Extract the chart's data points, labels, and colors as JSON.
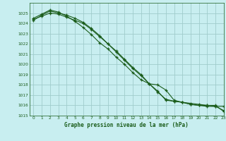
{
  "title": "Graphe pression niveau de la mer (hPa)",
  "bg_color": "#c8eef0",
  "grid_color": "#a0cccc",
  "line_color": "#1a5c1a",
  "xlim": [
    -0.5,
    23
  ],
  "ylim": [
    1015,
    1026
  ],
  "yticks": [
    1015,
    1016,
    1017,
    1018,
    1019,
    1020,
    1021,
    1022,
    1023,
    1024,
    1025
  ],
  "xticks": [
    0,
    1,
    2,
    3,
    4,
    5,
    6,
    7,
    8,
    9,
    10,
    11,
    12,
    13,
    14,
    15,
    16,
    17,
    18,
    19,
    20,
    21,
    22,
    23
  ],
  "line1_x": [
    0,
    1,
    2,
    3,
    4,
    5,
    6,
    7,
    8,
    9,
    10,
    11,
    12,
    13,
    14,
    15,
    16,
    17,
    18,
    19,
    20,
    21,
    22,
    23
  ],
  "line1_y": [
    1024.3,
    1024.8,
    1025.2,
    1025.0,
    1024.8,
    1024.5,
    1024.1,
    1023.5,
    1022.8,
    1022.0,
    1021.2,
    1020.4,
    1019.6,
    1018.9,
    1018.1,
    1018.0,
    1017.5,
    1016.5,
    1016.3,
    1016.1,
    1016.0,
    1015.9,
    1015.9,
    1015.5
  ],
  "line2_x": [
    0,
    1,
    2,
    3,
    4,
    5,
    6,
    7,
    8,
    9,
    10,
    11,
    12,
    13,
    14,
    15,
    16,
    17,
    18,
    19,
    20,
    21,
    22,
    23
  ],
  "line2_y": [
    1024.5,
    1024.9,
    1025.3,
    1025.1,
    1024.7,
    1024.2,
    1023.6,
    1022.9,
    1022.1,
    1021.5,
    1020.7,
    1020.0,
    1019.2,
    1018.5,
    1018.1,
    1017.4,
    1016.5,
    1016.4,
    1016.3,
    1016.2,
    1016.1,
    1016.0,
    1016.0,
    1015.4
  ],
  "line3_x": [
    0,
    1,
    2,
    3,
    4,
    5,
    6,
    7,
    8,
    9,
    10,
    11,
    12,
    13,
    14,
    15,
    16,
    17,
    18,
    19,
    20,
    21,
    22,
    23
  ],
  "line3_y": [
    1024.4,
    1024.7,
    1025.0,
    1024.9,
    1024.6,
    1024.3,
    1024.0,
    1023.4,
    1022.7,
    1022.0,
    1021.3,
    1020.5,
    1019.7,
    1019.0,
    1018.1,
    1017.3,
    1016.6,
    1016.4,
    1016.3,
    1016.1,
    1016.0,
    1016.0,
    1015.9,
    1015.9
  ]
}
